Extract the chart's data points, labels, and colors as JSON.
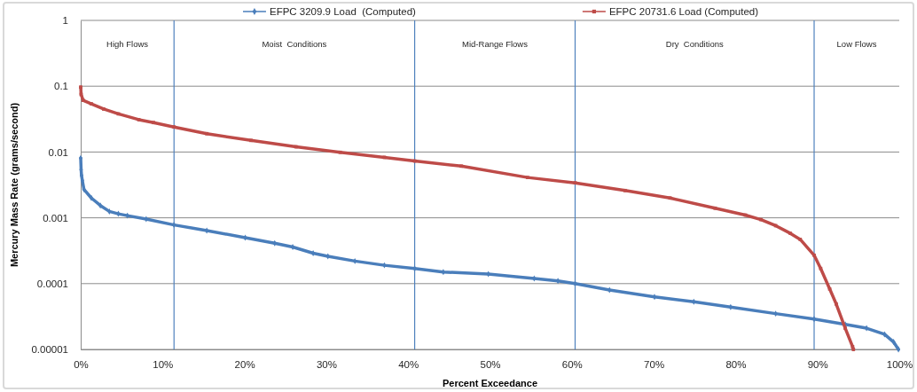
{
  "chart_data": {
    "type": "line",
    "xlabel": "Percent Exceedance",
    "ylabel": "Mercury Mass Rate (grams/second)",
    "xlim": [
      0,
      100
    ],
    "xticks": [
      {
        "value": 0,
        "label": "0%"
      },
      {
        "value": 10,
        "label": "10%"
      },
      {
        "value": 20,
        "label": "20%"
      },
      {
        "value": 30,
        "label": "30%"
      },
      {
        "value": 40,
        "label": "40%"
      },
      {
        "value": 50,
        "label": "50%"
      },
      {
        "value": 60,
        "label": "60%"
      },
      {
        "value": 70,
        "label": "70%"
      },
      {
        "value": 80,
        "label": "80%"
      },
      {
        "value": 90,
        "label": "90%"
      },
      {
        "value": 100,
        "label": "100%"
      }
    ],
    "ylim": [
      1e-05,
      1
    ],
    "yticks": [
      {
        "value": 1e-05,
        "label": "0.00001"
      },
      {
        "value": 0.0001,
        "label": "0.0001"
      },
      {
        "value": 0.001,
        "label": "0.001"
      },
      {
        "value": 0.01,
        "label": "0.01"
      },
      {
        "value": 0.1,
        "label": "0.1"
      },
      {
        "value": 1,
        "label": "1"
      }
    ],
    "log": true,
    "grid": "y",
    "legend": "top",
    "series": [
      {
        "name": "EFPC 3209.9 Load  (Computed)",
        "color": "#4a7ebb",
        "marker": "diamond",
        "x": [
          0,
          0.05,
          0.1,
          0.2,
          0.4,
          1.3,
          2.4,
          3.5,
          4.6,
          5.7,
          8,
          11.4,
          15.4,
          20.1,
          23.7,
          25.9,
          28.4,
          30.2,
          33.5,
          37.1,
          40.8,
          44.3,
          49.8,
          55.4,
          58.3,
          60.4,
          64.6,
          70.1,
          74.9,
          79.4,
          84.9,
          89.6,
          93.4,
          96,
          98.2,
          99.3,
          99.9
        ],
        "values": [
          0.0081,
          0.0054,
          0.0044,
          0.0037,
          0.0027,
          0.002,
          0.00154,
          0.00125,
          0.00115,
          0.00108,
          0.00096,
          0.00078,
          0.00064,
          0.0005,
          0.00041,
          0.00036,
          0.00029,
          0.00026,
          0.00022,
          0.00019,
          0.00017,
          0.00015,
          0.00014,
          0.00012,
          0.00011,
          0.0001,
          8e-05,
          6.3e-05,
          5.3e-05,
          4.4e-05,
          3.5e-05,
          2.9e-05,
          2.4e-05,
          2.1e-05,
          1.7e-05,
          1.3e-05,
          1e-05
        ]
      },
      {
        "name": "EFPC 20731.6 Load (Computed)",
        "color": "#be4b48",
        "marker": "square",
        "x": [
          0,
          0.05,
          0.3,
          1.3,
          2.8,
          4.6,
          7.1,
          8.9,
          11.4,
          15.4,
          20.8,
          26.3,
          31.7,
          37.1,
          40.8,
          46.5,
          54.6,
          60.4,
          66.5,
          72,
          77.5,
          81.2,
          83.1,
          84.9,
          86.7,
          87.9,
          89.6,
          90.4,
          91.5,
          92.3,
          93.4,
          94.3,
          94.4
        ],
        "values": [
          0.097,
          0.075,
          0.061,
          0.054,
          0.045,
          0.038,
          0.031,
          0.028,
          0.024,
          0.019,
          0.015,
          0.012,
          0.0099,
          0.0083,
          0.0073,
          0.0061,
          0.0041,
          0.0034,
          0.0026,
          0.002,
          0.0014,
          0.0011,
          0.00094,
          0.00076,
          0.00058,
          0.00047,
          0.00027,
          0.00017,
          8.3e-05,
          4.9e-05,
          2.1e-05,
          1.1e-05,
          1e-05
        ]
      }
    ],
    "ref_lines": [
      {
        "axis": "x",
        "value": 11.4,
        "color": "#4f81bd"
      },
      {
        "axis": "x",
        "value": 40.8,
        "color": "#4f81bd"
      },
      {
        "axis": "x",
        "value": 60.4,
        "color": "#4f81bd"
      },
      {
        "axis": "x",
        "value": 89.6,
        "color": "#4f81bd"
      }
    ],
    "annotations": [
      "High Flows",
      "Moist  Conditions",
      "Mid-Range Flows",
      "Dry  Conditions",
      "Low Flows"
    ]
  }
}
